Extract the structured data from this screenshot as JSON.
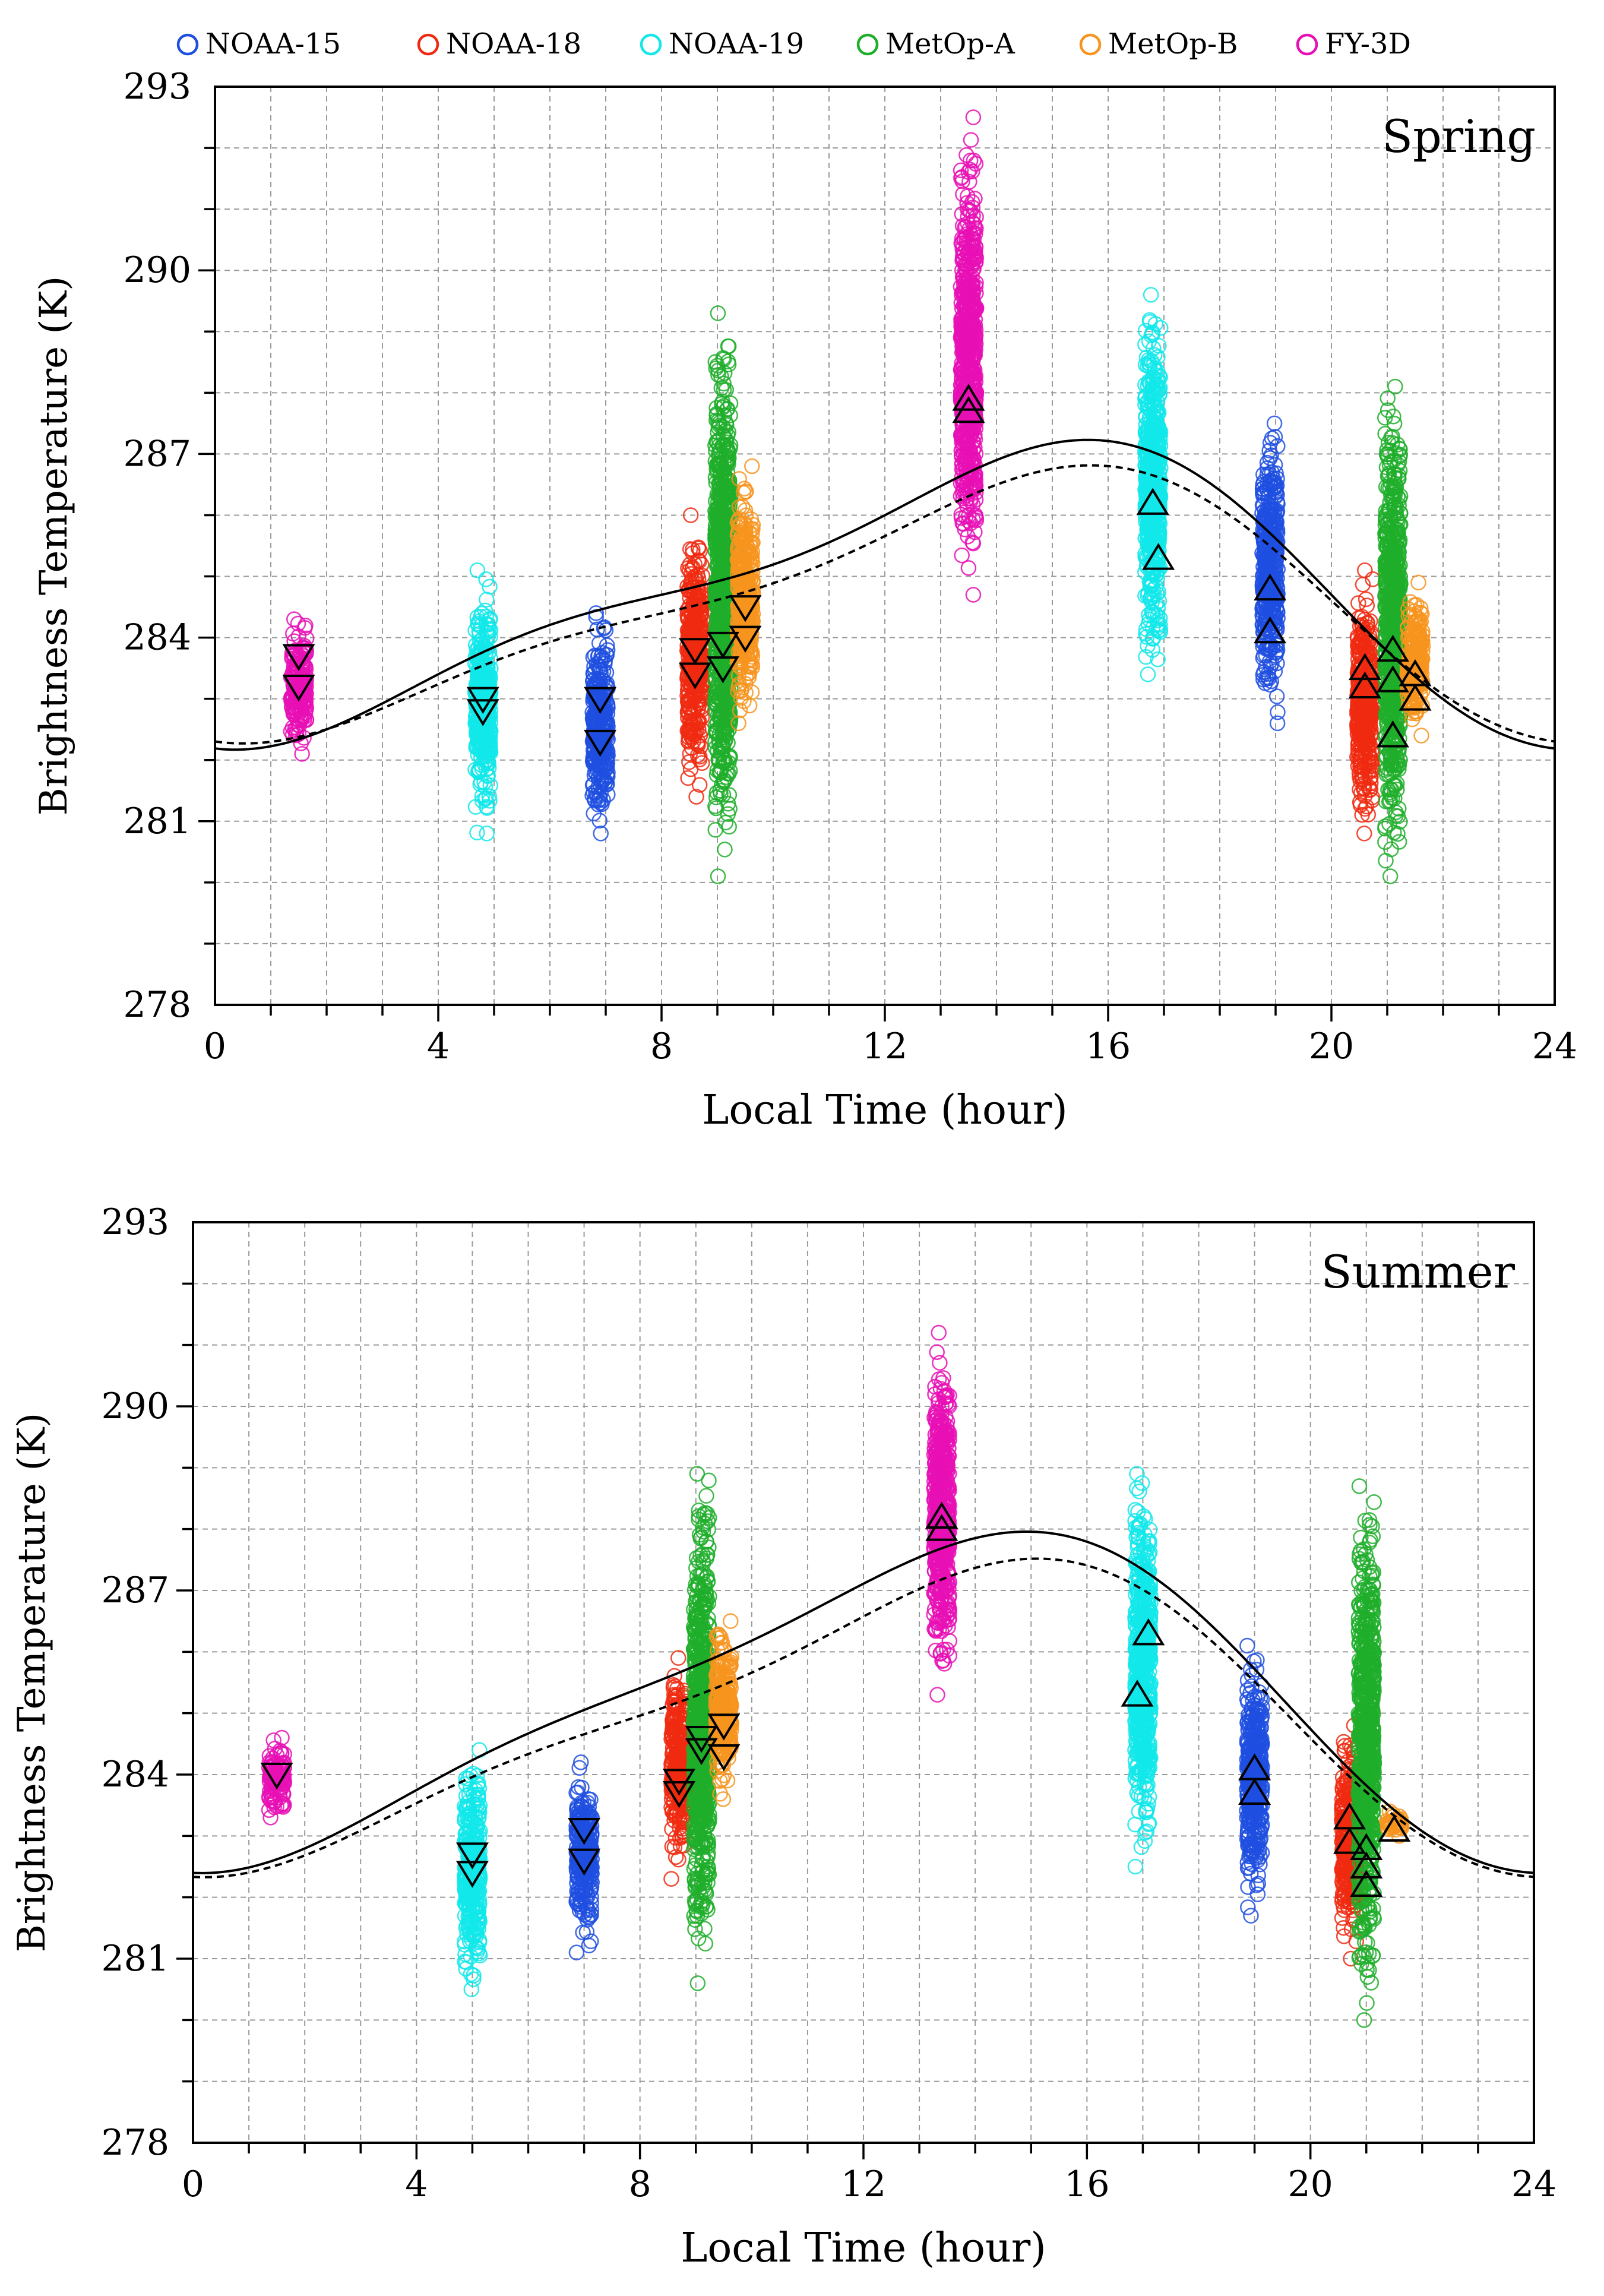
{
  "legend": [
    {
      "name": "NOAA-15",
      "color": "#1f4fe0"
    },
    {
      "name": "NOAA-18",
      "color": "#f02a10"
    },
    {
      "name": "NOAA-19",
      "color": "#12e8ea"
    },
    {
      "name": "MetOp-A",
      "color": "#1fae2a"
    },
    {
      "name": "MetOp-B",
      "color": "#f7941d"
    },
    {
      "name": "FY-3D",
      "color": "#e70fb5"
    }
  ],
  "chart_data": [
    {
      "type": "scatter",
      "title": "Spring",
      "xlabel": "Local Time (hour)",
      "ylabel": "Brightness Temperature (K)",
      "xlim": [
        0,
        24
      ],
      "ylim": [
        278,
        293
      ],
      "xticks": [
        0,
        4,
        8,
        12,
        16,
        20,
        24
      ],
      "yticks": [
        278,
        281,
        284,
        287,
        290,
        293
      ],
      "grid": true,
      "series": [
        {
          "name": "FY-3D",
          "color": "#e70fb5",
          "clusters": [
            {
              "x": 1.5,
              "min": 282.1,
              "max": 284.3
            },
            {
              "x": 13.5,
              "min": 284.7,
              "max": 292.5
            }
          ]
        },
        {
          "name": "NOAA-19",
          "color": "#12e8ea",
          "clusters": [
            {
              "x": 4.8,
              "min": 280.8,
              "max": 285.1
            },
            {
              "x": 16.8,
              "min": 283.4,
              "max": 289.6
            }
          ]
        },
        {
          "name": "NOAA-15",
          "color": "#1f4fe0",
          "clusters": [
            {
              "x": 6.9,
              "min": 280.8,
              "max": 284.4
            },
            {
              "x": 18.9,
              "min": 282.6,
              "max": 287.5
            }
          ]
        },
        {
          "name": "NOAA-18",
          "color": "#f02a10",
          "clusters": [
            {
              "x": 8.6,
              "min": 281.4,
              "max": 286.0
            },
            {
              "x": 20.6,
              "min": 280.8,
              "max": 285.1
            }
          ]
        },
        {
          "name": "MetOp-A",
          "color": "#1fae2a",
          "clusters": [
            {
              "x": 9.1,
              "min": 280.1,
              "max": 289.3
            },
            {
              "x": 21.1,
              "min": 280.1,
              "max": 288.1
            }
          ]
        },
        {
          "name": "MetOp-B",
          "color": "#f7941d",
          "clusters": [
            {
              "x": 9.5,
              "min": 282.6,
              "max": 286.8
            },
            {
              "x": 21.5,
              "min": 282.4,
              "max": 284.9
            }
          ]
        }
      ],
      "triangles_down": [
        {
          "x": 1.5,
          "y": 283.7
        },
        {
          "x": 1.5,
          "y": 283.2
        },
        {
          "x": 4.8,
          "y": 283.0
        },
        {
          "x": 4.8,
          "y": 282.8
        },
        {
          "x": 6.9,
          "y": 283.0
        },
        {
          "x": 6.9,
          "y": 282.3
        },
        {
          "x": 8.6,
          "y": 283.8
        },
        {
          "x": 8.6,
          "y": 283.4
        },
        {
          "x": 9.1,
          "y": 283.9
        },
        {
          "x": 9.1,
          "y": 283.5
        },
        {
          "x": 9.5,
          "y": 284.5
        },
        {
          "x": 9.5,
          "y": 284.0
        }
      ],
      "triangles_up": [
        {
          "x": 13.5,
          "y": 287.7
        },
        {
          "x": 13.5,
          "y": 287.9
        },
        {
          "x": 16.8,
          "y": 286.2
        },
        {
          "x": 16.9,
          "y": 285.3
        },
        {
          "x": 18.9,
          "y": 284.8
        },
        {
          "x": 18.9,
          "y": 284.1
        },
        {
          "x": 20.6,
          "y": 283.5
        },
        {
          "x": 20.6,
          "y": 283.2
        },
        {
          "x": 21.1,
          "y": 283.8
        },
        {
          "x": 21.1,
          "y": 283.3
        },
        {
          "x": 21.1,
          "y": 282.4
        },
        {
          "x": 21.5,
          "y": 283.4
        },
        {
          "x": 21.5,
          "y": 283.0
        }
      ],
      "fit_solid": {
        "mean": 284.7,
        "amplitude": 2.2,
        "peak_hour": 14.0,
        "secondary_amplitude": 0.7,
        "secondary_phase": 5.0
      },
      "fit_dashed": {
        "mean": 284.5,
        "amplitude": 2.0,
        "peak_hour": 14.2,
        "secondary_amplitude": 0.6,
        "secondary_phase": 5.0
      }
    },
    {
      "type": "scatter",
      "title": "Summer",
      "xlabel": "Local Time (hour)",
      "ylabel": "Brightness Temperature (K)",
      "xlim": [
        0,
        24
      ],
      "ylim": [
        278,
        293
      ],
      "xticks": [
        0,
        4,
        8,
        12,
        16,
        20,
        24
      ],
      "yticks": [
        278,
        281,
        284,
        287,
        290,
        293
      ],
      "grid": true,
      "series": [
        {
          "name": "FY-3D",
          "color": "#e70fb5",
          "clusters": [
            {
              "x": 1.5,
              "min": 283.3,
              "max": 284.6
            },
            {
              "x": 13.4,
              "min": 285.3,
              "max": 291.2
            }
          ]
        },
        {
          "name": "NOAA-19",
          "color": "#12e8ea",
          "clusters": [
            {
              "x": 5.0,
              "min": 280.5,
              "max": 284.4
            },
            {
              "x": 17.0,
              "min": 282.5,
              "max": 288.9
            }
          ]
        },
        {
          "name": "NOAA-15",
          "color": "#1f4fe0",
          "clusters": [
            {
              "x": 7.0,
              "min": 281.1,
              "max": 284.2
            },
            {
              "x": 19.0,
              "min": 281.7,
              "max": 286.1
            }
          ]
        },
        {
          "name": "NOAA-18",
          "color": "#f02a10",
          "clusters": [
            {
              "x": 8.7,
              "min": 282.3,
              "max": 285.9
            },
            {
              "x": 20.7,
              "min": 281.0,
              "max": 284.8
            }
          ]
        },
        {
          "name": "MetOp-A",
          "color": "#1fae2a",
          "clusters": [
            {
              "x": 9.1,
              "min": 280.6,
              "max": 288.9
            },
            {
              "x": 21.0,
              "min": 280.0,
              "max": 288.7
            }
          ]
        },
        {
          "name": "MetOp-B",
          "color": "#f7941d",
          "clusters": [
            {
              "x": 9.5,
              "min": 283.6,
              "max": 286.5
            },
            {
              "x": 21.5,
              "min": 283.0,
              "max": 283.4
            }
          ]
        }
      ],
      "triangles_down": [
        {
          "x": 1.5,
          "y": 284.0
        },
        {
          "x": 5.0,
          "y": 282.7
        },
        {
          "x": 5.0,
          "y": 282.4
        },
        {
          "x": 7.0,
          "y": 283.1
        },
        {
          "x": 7.0,
          "y": 282.6
        },
        {
          "x": 8.7,
          "y": 283.9
        },
        {
          "x": 8.7,
          "y": 283.7
        },
        {
          "x": 9.1,
          "y": 284.6
        },
        {
          "x": 9.1,
          "y": 284.4
        },
        {
          "x": 9.5,
          "y": 284.8
        },
        {
          "x": 9.5,
          "y": 284.3
        }
      ],
      "triangles_up": [
        {
          "x": 13.4,
          "y": 288.2
        },
        {
          "x": 13.4,
          "y": 288.0
        },
        {
          "x": 16.9,
          "y": 285.3
        },
        {
          "x": 17.1,
          "y": 286.3
        },
        {
          "x": 19.0,
          "y": 284.1
        },
        {
          "x": 19.0,
          "y": 283.7
        },
        {
          "x": 20.7,
          "y": 283.3
        },
        {
          "x": 20.7,
          "y": 282.9
        },
        {
          "x": 21.0,
          "y": 282.8
        },
        {
          "x": 21.0,
          "y": 282.5
        },
        {
          "x": 21.0,
          "y": 282.2
        },
        {
          "x": 21.5,
          "y": 283.1
        }
      ],
      "fit_solid": {
        "mean": 285.2,
        "amplitude": 2.55,
        "peak_hour": 13.5,
        "secondary_amplitude": 0.6,
        "secondary_phase": 4.6
      },
      "fit_dashed": {
        "mean": 284.9,
        "amplitude": 2.35,
        "peak_hour": 13.7,
        "secondary_amplitude": 0.6,
        "secondary_phase": 4.6
      }
    }
  ]
}
